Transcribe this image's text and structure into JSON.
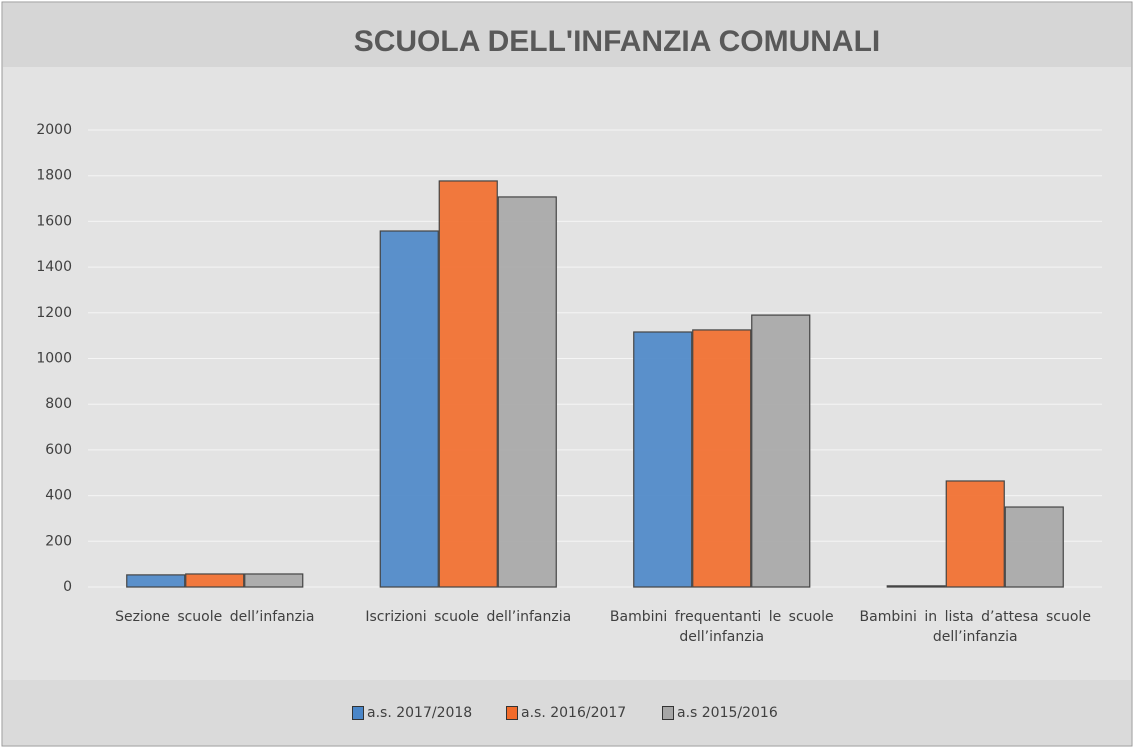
{
  "chart_data": {
    "type": "bar",
    "title": "SCUOLA DELL'INFANZIA COMUNALI",
    "categories": [
      "Sezione scuole dell’infanzia",
      "Iscrizioni scuole dell’infanzia",
      "Bambini frequentanti le scuole dell’infanzia",
      "Bambini in lista d’attesa scuole dell’infanzia"
    ],
    "series": [
      {
        "name": "a.s. 2017/2018",
        "color": "#4a86c8",
        "values": [
          53,
          1558,
          1116,
          5
        ]
      },
      {
        "name": "a.s. 2016/2017",
        "color": "#f26b2a",
        "values": [
          57,
          1777,
          1125,
          464
        ]
      },
      {
        "name": "a.s 2015/2016",
        "color": "#a6a6a6",
        "values": [
          57,
          1707,
          1190,
          350
        ]
      }
    ],
    "ylim": [
      0,
      2000
    ],
    "yticks": [
      0,
      200,
      400,
      600,
      800,
      1000,
      1200,
      1400,
      1600,
      1800,
      2000
    ],
    "grid": true,
    "legend": "bottom"
  }
}
